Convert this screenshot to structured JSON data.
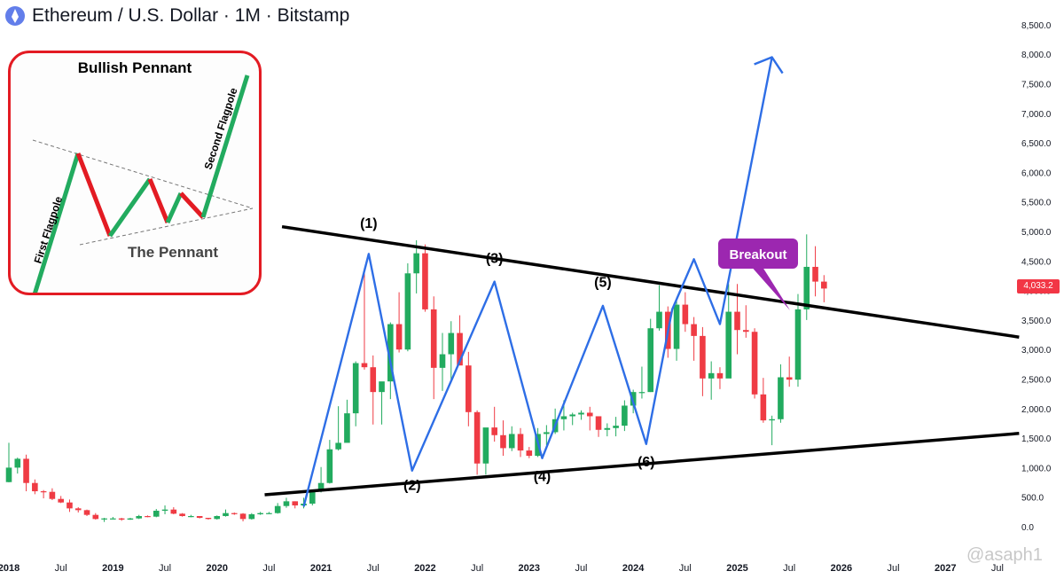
{
  "header": {
    "icon": "ethereum-logo-icon",
    "title": "Ethereum / U.S. Dollar · 1M · Bitstamp"
  },
  "inset": {
    "title": "Bullish Pennant",
    "first_flagpole": "First Flagpole",
    "second_flagpole": "Second Flagpole",
    "pennant": "The Pennant"
  },
  "annotations": {
    "breakout": "Breakout",
    "points": [
      "(1)",
      "(2)",
      "(3)",
      "(4)",
      "(5)",
      "(6)"
    ]
  },
  "price_label": "4,033.2",
  "watermark": "@asaph1",
  "colors": {
    "up": "#22ab5f",
    "down": "#ef3b44",
    "pattern": "#2e6ee6",
    "breakout": "#9c27b0",
    "trend": "#000000"
  },
  "chart_data": {
    "type": "candlestick",
    "title": "Ethereum / U.S. Dollar · 1M · Bitstamp",
    "x_axis": {
      "ticks": [
        "2018",
        "Jul",
        "2019",
        "Jul",
        "2020",
        "Jul",
        "2021",
        "Jul",
        "2022",
        "Jul",
        "2023",
        "Jul",
        "2024",
        "Jul",
        "2025",
        "Jul",
        "2026",
        "Jul",
        "2027",
        "Jul"
      ],
      "bold": [
        "2018",
        "2019",
        "2020",
        "2021",
        "2022",
        "2023",
        "2024",
        "2025",
        "2026",
        "2027"
      ]
    },
    "y_axis": {
      "ticks": [
        "0.0",
        "500.0",
        "1,000.0",
        "1,500.0",
        "2,000.0",
        "2,500.0",
        "3,000.0",
        "3,500.0",
        "4,000.0",
        "4,500.0",
        "5,000.0",
        "5,500.0",
        "6,000.0",
        "6,500.0",
        "7,000.0",
        "7,500.0",
        "8,000.0",
        "8,500.0"
      ],
      "ylim": [
        0,
        8800
      ]
    },
    "candles": [
      [
        755,
        1000,
        1420,
        750
      ],
      [
        1000,
        1150,
        1170,
        900
      ],
      [
        1150,
        740,
        1220,
        600
      ],
      [
        740,
        600,
        800,
        550
      ],
      [
        600,
        590,
        620,
        480
      ],
      [
        590,
        470,
        650,
        450
      ],
      [
        470,
        410,
        520,
        400
      ],
      [
        410,
        310,
        460,
        250
      ],
      [
        310,
        280,
        330,
        240
      ],
      [
        280,
        200,
        290,
        180
      ],
      [
        200,
        130,
        230,
        120
      ],
      [
        130,
        140,
        150,
        80
      ],
      [
        140,
        140,
        165,
        130
      ],
      [
        140,
        120,
        150,
        100
      ],
      [
        120,
        140,
        150,
        115
      ],
      [
        140,
        180,
        200,
        130
      ],
      [
        180,
        170,
        190,
        160
      ],
      [
        170,
        270,
        300,
        160
      ],
      [
        270,
        290,
        360,
        210
      ],
      [
        290,
        220,
        330,
        210
      ],
      [
        220,
        180,
        230,
        170
      ],
      [
        180,
        180,
        200,
        160
      ],
      [
        180,
        150,
        160,
        140
      ],
      [
        150,
        130,
        150,
        120
      ],
      [
        130,
        180,
        190,
        120
      ],
      [
        180,
        230,
        290,
        170
      ],
      [
        230,
        220,
        240,
        200
      ],
      [
        220,
        130,
        230,
        90
      ],
      [
        130,
        210,
        230,
        120
      ],
      [
        210,
        230,
        250,
        200
      ],
      [
        230,
        230,
        250,
        220
      ],
      [
        230,
        350,
        400,
        220
      ],
      [
        350,
        430,
        490,
        320
      ],
      [
        430,
        360,
        430,
        310
      ],
      [
        360,
        390,
        490,
        310
      ],
      [
        390,
        610,
        630,
        360
      ],
      [
        610,
        740,
        1010,
        580
      ],
      [
        740,
        1310,
        1470,
        730
      ],
      [
        1310,
        1420,
        2040,
        1290
      ],
      [
        1420,
        1920,
        2150,
        1550
      ],
      [
        1920,
        2770,
        2800,
        1700
      ],
      [
        2770,
        2700,
        4380,
        2660
      ],
      [
        2700,
        2280,
        2900,
        1730
      ],
      [
        2280,
        2460,
        2450,
        1730
      ],
      [
        2460,
        3430,
        3460,
        2160
      ],
      [
        3430,
        3000,
        3970,
        2950
      ],
      [
        3000,
        4290,
        4460,
        2970
      ],
      [
        4290,
        4630,
        4850,
        3950
      ],
      [
        4630,
        3680,
        4780,
        3640
      ],
      [
        3680,
        2690,
        3900,
        2160
      ],
      [
        2690,
        2920,
        3280,
        2300
      ],
      [
        2920,
        3280,
        3480,
        2450
      ],
      [
        3280,
        2730,
        3580,
        2760
      ],
      [
        2730,
        1940,
        2960,
        1700
      ],
      [
        1940,
        1070,
        1970,
        880
      ],
      [
        1070,
        1680,
        1240,
        880
      ],
      [
        1680,
        1550,
        2030,
        1440
      ],
      [
        1550,
        1330,
        1800,
        1200
      ],
      [
        1330,
        1570,
        1700,
        1280
      ],
      [
        1570,
        1290,
        1670,
        1180
      ],
      [
        1290,
        1200,
        1350,
        1160
      ],
      [
        1200,
        1570,
        1670,
        1180
      ],
      [
        1570,
        1600,
        1720,
        1380
      ],
      [
        1600,
        1820,
        2000,
        1570
      ],
      [
        1820,
        1870,
        2140,
        1630
      ],
      [
        1870,
        1900,
        1930,
        1720
      ],
      [
        1900,
        1930,
        1970,
        1810
      ],
      [
        1930,
        1870,
        2030,
        1630
      ],
      [
        1870,
        1640,
        1860,
        1520
      ],
      [
        1640,
        1670,
        1750,
        1530
      ],
      [
        1670,
        1710,
        1860,
        1530
      ],
      [
        1710,
        2050,
        2140,
        1620
      ],
      [
        2050,
        2280,
        2320,
        1920
      ],
      [
        2280,
        2280,
        2710,
        2170
      ],
      [
        2280,
        3360,
        3520,
        2280
      ],
      [
        3360,
        3640,
        4090,
        3320
      ],
      [
        3640,
        3010,
        3730,
        2860
      ],
      [
        3010,
        3760,
        3880,
        2810
      ],
      [
        3760,
        3430,
        3970,
        3300
      ],
      [
        3430,
        3230,
        3550,
        2810
      ],
      [
        3230,
        2510,
        3380,
        2210
      ],
      [
        2510,
        2600,
        2800,
        2150
      ],
      [
        2600,
        2510,
        2700,
        2330
      ],
      [
        2510,
        3640,
        4110,
        2550
      ],
      [
        3640,
        3330,
        4110,
        2920
      ],
      [
        3330,
        3300,
        3750,
        3200
      ],
      [
        3300,
        2240,
        3360,
        2170
      ],
      [
        2240,
        1800,
        2520,
        1760
      ],
      [
        1800,
        1820,
        1880,
        1380
      ],
      [
        1820,
        2530,
        2750,
        1760
      ],
      [
        2530,
        2490,
        2880,
        2370
      ],
      [
        2490,
        3680,
        3940,
        2370
      ],
      [
        3680,
        4400,
        4950,
        3500
      ],
      [
        4400,
        4150,
        4750,
        3900
      ],
      [
        4150,
        4033,
        4260,
        3800
      ]
    ],
    "trendlines": {
      "upper": [
        [
          0.5,
          5080
        ],
        [
          85.5,
          3210
        ]
      ],
      "lower": [
        [
          -1.5,
          540
        ],
        [
          85.5,
          1580
        ]
      ]
    },
    "pattern_path": [
      [
        -2,
        340
      ],
      [
        5.5,
        4620
      ],
      [
        10.5,
        950
      ],
      [
        20.0,
        4150
      ],
      [
        25.5,
        1160
      ],
      [
        32.5,
        3740
      ],
      [
        37.5,
        1400
      ],
      [
        40.5,
        3680
      ],
      [
        43.0,
        4530
      ],
      [
        46.0,
        3430
      ],
      [
        52.0,
        7950
      ]
    ],
    "labels": [
      {
        "text": "(1)",
        "at": [
          5.5,
          5060
        ]
      },
      {
        "text": "(2)",
        "at": [
          10.5,
          620
        ]
      },
      {
        "text": "(3)",
        "at": [
          20.0,
          4470
        ]
      },
      {
        "text": "(4)",
        "at": [
          25.5,
          770
        ]
      },
      {
        "text": "(5)",
        "at": [
          32.5,
          4060
        ]
      },
      {
        "text": "(6)",
        "at": [
          37.5,
          1020
        ]
      }
    ]
  }
}
